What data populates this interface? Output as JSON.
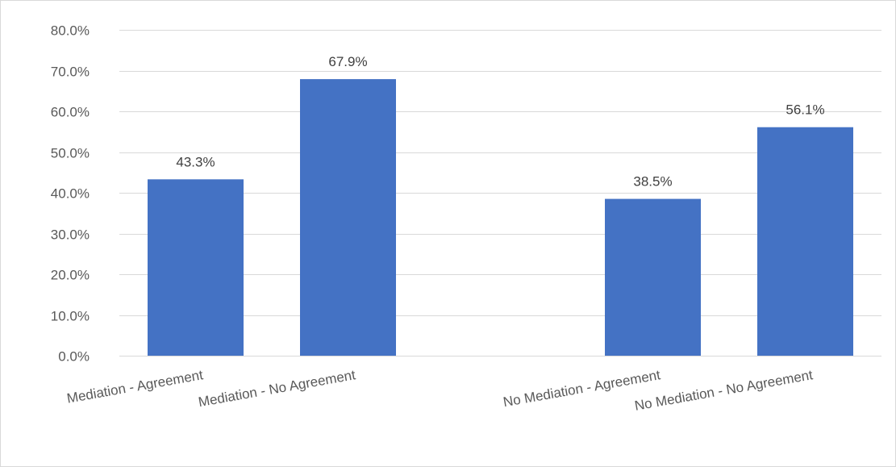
{
  "chart_data": {
    "type": "bar",
    "categories": [
      "Mediation - Agreement",
      "Mediation - No Agreement",
      "",
      "No Mediation -  Agreement",
      "No Mediation - No Agreement"
    ],
    "values": [
      43.3,
      67.9,
      null,
      38.5,
      56.1
    ],
    "data_labels": [
      "43.3%",
      "67.9%",
      "",
      "38.5%",
      "56.1%"
    ],
    "y_ticks": [
      "0.0%",
      "10.0%",
      "20.0%",
      "30.0%",
      "40.0%",
      "50.0%",
      "60.0%",
      "70.0%",
      "80.0%"
    ],
    "ylim": [
      0,
      80
    ],
    "y_unit": "%",
    "grid": true,
    "legend": "none",
    "bar_color": "#4472c4",
    "title": "",
    "xlabel": "",
    "ylabel": ""
  }
}
